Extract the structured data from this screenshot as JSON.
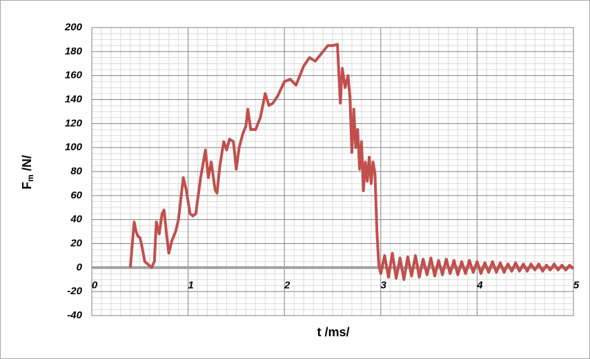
{
  "chart_data": {
    "type": "line",
    "xlabel": "t /ms/",
    "ylabel": [
      "F",
      "m",
      " /N/"
    ],
    "xlim": [
      0,
      5
    ],
    "xticks": [
      0,
      1,
      2,
      3,
      4,
      5
    ],
    "ylim": [
      -40,
      200
    ],
    "yticks": [
      -40,
      -20,
      0,
      20,
      40,
      60,
      80,
      100,
      120,
      140,
      160,
      180,
      200
    ],
    "grid": true,
    "minor_grid": {
      "x": 10,
      "y": 4
    },
    "series": [
      {
        "color": "#c0504d",
        "x": [
          0.4,
          0.44,
          0.46,
          0.48,
          0.5,
          0.52,
          0.55,
          0.58,
          0.62,
          0.65,
          0.67,
          0.7,
          0.73,
          0.75,
          0.78,
          0.8,
          0.83,
          0.87,
          0.9,
          0.95,
          0.98,
          1.02,
          1.05,
          1.08,
          1.13,
          1.18,
          1.21,
          1.24,
          1.28,
          1.3,
          1.33,
          1.37,
          1.4,
          1.43,
          1.47,
          1.5,
          1.53,
          1.57,
          1.6,
          1.62,
          1.65,
          1.7,
          1.75,
          1.8,
          1.84,
          1.88,
          1.93,
          2.0,
          2.06,
          2.12,
          2.2,
          2.26,
          2.32,
          2.38,
          2.45,
          2.5,
          2.55,
          2.58,
          2.6,
          2.63,
          2.66,
          2.68,
          2.7,
          2.72,
          2.74,
          2.76,
          2.78,
          2.8,
          2.82,
          2.84,
          2.86,
          2.88,
          2.9,
          2.92,
          2.94,
          2.96,
          2.98,
          3.0,
          3.04,
          3.08,
          3.12,
          3.16,
          3.2,
          3.24,
          3.28,
          3.32,
          3.36,
          3.4,
          3.44,
          3.48,
          3.52,
          3.56,
          3.6,
          3.64,
          3.68,
          3.72,
          3.76,
          3.8,
          3.84,
          3.88,
          3.92,
          3.96,
          4.0,
          4.04,
          4.08,
          4.12,
          4.16,
          4.2,
          4.24,
          4.28,
          4.32,
          4.36,
          4.4,
          4.44,
          4.48,
          4.52,
          4.56,
          4.6,
          4.64,
          4.68,
          4.72,
          4.76,
          4.8,
          4.84,
          4.88,
          4.92,
          4.96,
          5.0
        ],
        "values": [
          0,
          38,
          30,
          26,
          25,
          18,
          5,
          3,
          0,
          5,
          38,
          28,
          45,
          48,
          25,
          12,
          22,
          30,
          40,
          75,
          65,
          45,
          43,
          45,
          75,
          98,
          75,
          88,
          65,
          62,
          85,
          105,
          98,
          107,
          105,
          82,
          100,
          112,
          118,
          132,
          115,
          115,
          125,
          145,
          135,
          137,
          143,
          155,
          157,
          152,
          168,
          175,
          172,
          178,
          185,
          185,
          186,
          137,
          166,
          150,
          160,
          142,
          96,
          132,
          100,
          115,
          82,
          105,
          64,
          88,
          72,
          92,
          70,
          88,
          78,
          30,
          2,
          -5,
          10,
          -8,
          12,
          -9,
          8,
          -10,
          9,
          -7,
          10,
          -8,
          7,
          -6,
          8,
          -7,
          6,
          -6,
          7,
          -5,
          6,
          -6,
          5,
          -5,
          6,
          -4,
          5,
          -5,
          4,
          -4,
          5,
          -4,
          4,
          -4,
          3,
          -3,
          4,
          -3,
          3,
          -3,
          3,
          -2,
          3,
          -3,
          2,
          -2,
          3,
          -2,
          2,
          -2,
          2,
          -1
        ]
      }
    ]
  }
}
